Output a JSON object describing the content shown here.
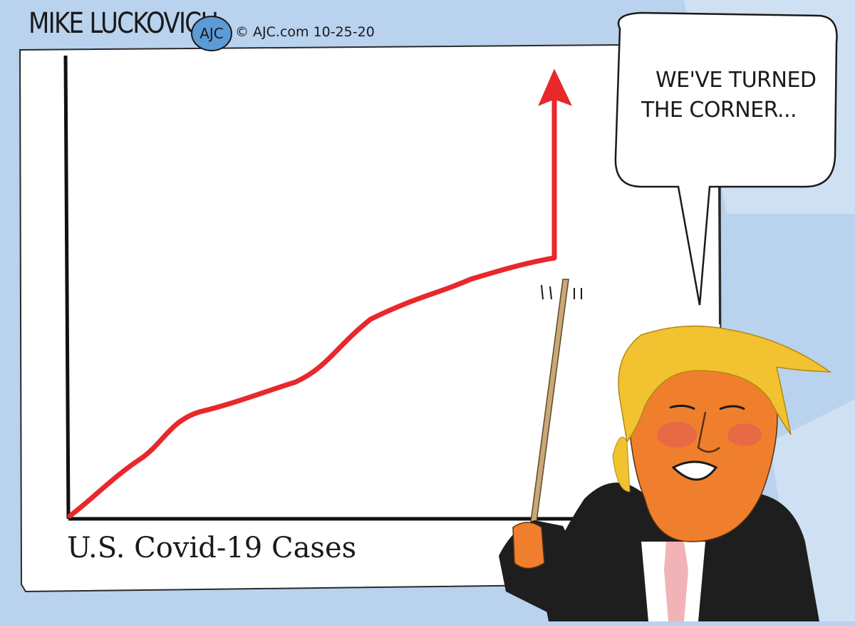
{
  "signature": "MIKE LUCKOVICH",
  "badge": "AJC",
  "credit": "© AJC.com 10-25-20",
  "chart_caption": "U.S. Covid-19 Cases",
  "speech": {
    "line1": "WE'VE TURNED",
    "line2": "THE CORNER..."
  },
  "colors": {
    "background": "#b9d2ee",
    "board": "#ffffff",
    "trend_line": "#e8282b",
    "hair": "#f2c230",
    "face": "#f07f2d",
    "suit": "#1e1e1e",
    "tie": "#f2b3b8",
    "pointer": "#c9a777"
  },
  "icons": [
    "ajc-logo-icon",
    "pointer-stick-icon",
    "up-arrow-icon"
  ]
}
